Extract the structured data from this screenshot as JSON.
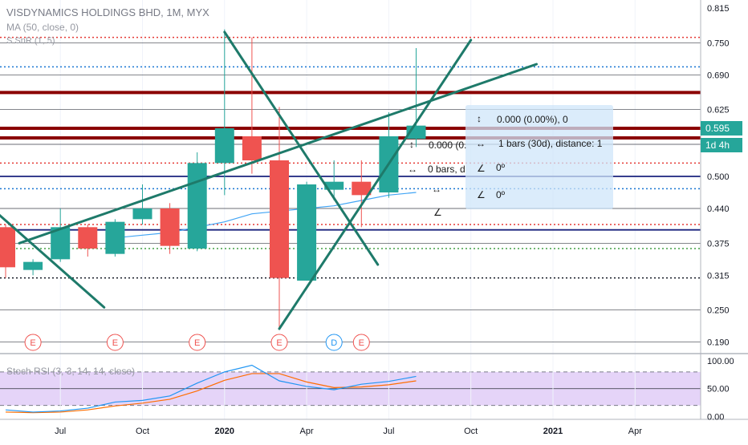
{
  "legend": {
    "title": "VISDYNAMICS HOLDINGS BHD, 1M, MYX",
    "ma": "MA (50, close, 0)",
    "snr": "S SnR (1, 5)",
    "rsi": "Stoch RSI (3, 3, 14, 14, close)"
  },
  "badges": {
    "last_price": "0.595",
    "countdown": "1d 4h"
  },
  "measure": {
    "line1": "0.000 (0.00%), 0",
    "line2": "0.000 (0.",
    "line3": "1 bars (30d), distance: 1",
    "line4": "0 bars, d",
    "line5": "0º",
    "line6": "0º"
  },
  "chart_data": {
    "type": "candlestick",
    "title": "VISDYNAMICS HOLDINGS BHD, 1M, MYX",
    "ylim": [
      0.17,
      0.83
    ],
    "price_ticks": [
      "0.815",
      "0.750",
      "0.690",
      "0.625",
      "0.560",
      "0.500",
      "0.440",
      "0.375",
      "0.315",
      "0.250",
      "0.190"
    ],
    "price_tick_values": [
      0.815,
      0.75,
      0.69,
      0.625,
      0.56,
      0.5,
      0.44,
      0.375,
      0.315,
      0.25,
      0.19
    ],
    "time_ticks": [
      "Jul",
      "Oct",
      "2020",
      "Apr",
      "Jul",
      "Oct",
      "2021",
      "Apr"
    ],
    "time_tick_index": [
      2,
      5,
      8,
      11,
      14,
      17,
      20,
      23
    ],
    "colors": {
      "up": "#26a69a",
      "down": "#ef5350",
      "trend": "#1e7a6a",
      "ma": "#42a5f5",
      "sr_heavy": "#8b0000",
      "sr_red": "#e53935",
      "sr_blue": "#1a237e",
      "sr_green": "#43a047"
    },
    "candles": [
      {
        "t": "2019-05",
        "o": 0.405,
        "h": 0.41,
        "l": 0.31,
        "c": 0.33
      },
      {
        "t": "2019-06",
        "o": 0.325,
        "h": 0.345,
        "l": 0.315,
        "c": 0.34
      },
      {
        "t": "2019-07",
        "o": 0.345,
        "h": 0.44,
        "l": 0.34,
        "c": 0.405
      },
      {
        "t": "2019-08",
        "o": 0.405,
        "h": 0.41,
        "l": 0.35,
        "c": 0.365
      },
      {
        "t": "2019-09",
        "o": 0.355,
        "h": 0.42,
        "l": 0.35,
        "c": 0.415
      },
      {
        "t": "2019-10",
        "o": 0.42,
        "h": 0.485,
        "l": 0.41,
        "c": 0.44
      },
      {
        "t": "2019-11",
        "o": 0.44,
        "h": 0.45,
        "l": 0.355,
        "c": 0.37
      },
      {
        "t": "2019-12",
        "o": 0.365,
        "h": 0.545,
        "l": 0.36,
        "c": 0.525
      },
      {
        "t": "2020-01",
        "o": 0.525,
        "h": 0.775,
        "l": 0.465,
        "c": 0.59
      },
      {
        "t": "2020-02",
        "o": 0.575,
        "h": 0.76,
        "l": 0.505,
        "c": 0.53
      },
      {
        "t": "2020-03",
        "o": 0.53,
        "h": 0.63,
        "l": 0.215,
        "c": 0.31
      },
      {
        "t": "2020-04",
        "o": 0.305,
        "h": 0.49,
        "l": 0.305,
        "c": 0.485
      },
      {
        "t": "2020-05",
        "o": 0.475,
        "h": 0.53,
        "l": 0.455,
        "c": 0.49
      },
      {
        "t": "2020-06",
        "o": 0.49,
        "h": 0.53,
        "l": 0.405,
        "c": 0.465
      },
      {
        "t": "2020-07",
        "o": 0.47,
        "h": 0.62,
        "l": 0.46,
        "c": 0.575
      },
      {
        "t": "2020-08",
        "o": 0.57,
        "h": 0.74,
        "l": 0.555,
        "c": 0.595
      }
    ],
    "ma": [
      {
        "i": 4,
        "v": 0.385
      },
      {
        "i": 5,
        "v": 0.39
      },
      {
        "i": 6,
        "v": 0.395
      },
      {
        "i": 7,
        "v": 0.405
      },
      {
        "i": 8,
        "v": 0.415
      },
      {
        "i": 9,
        "v": 0.43
      },
      {
        "i": 10,
        "v": 0.435
      },
      {
        "i": 11,
        "v": 0.44
      },
      {
        "i": 12,
        "v": 0.445
      },
      {
        "i": 13,
        "v": 0.455
      },
      {
        "i": 14,
        "v": 0.465
      },
      {
        "i": 15,
        "v": 0.47
      }
    ],
    "levels": [
      {
        "v": 0.76,
        "style": "red-dotted"
      },
      {
        "v": 0.75,
        "style": "gray"
      },
      {
        "v": 0.705,
        "style": "blue-dotted"
      },
      {
        "v": 0.69,
        "style": "gray"
      },
      {
        "v": 0.657,
        "style": "heavy"
      },
      {
        "v": 0.625,
        "style": "gray"
      },
      {
        "v": 0.59,
        "style": "heavy"
      },
      {
        "v": 0.572,
        "style": "heavy"
      },
      {
        "v": 0.56,
        "style": "gray"
      },
      {
        "v": 0.525,
        "style": "red-dotted"
      },
      {
        "v": 0.5,
        "style": "blue"
      },
      {
        "v": 0.477,
        "style": "blue-dotted"
      },
      {
        "v": 0.44,
        "style": "gray"
      },
      {
        "v": 0.41,
        "style": "red-dotted"
      },
      {
        "v": 0.4,
        "style": "blue"
      },
      {
        "v": 0.375,
        "style": "gray"
      },
      {
        "v": 0.365,
        "style": "green-dotted"
      },
      {
        "v": 0.31,
        "style": "black-dotted"
      },
      {
        "v": 0.25,
        "style": "gray"
      },
      {
        "v": 0.19,
        "style": "gray"
      }
    ],
    "trendlines": [
      {
        "x1": -0.5,
        "y1": 0.44,
        "x2": 3.6,
        "y2": 0.255
      },
      {
        "x1": 0.5,
        "y1": 0.375,
        "x2": 19.4,
        "y2": 0.71
      },
      {
        "x1": 8,
        "y1": 0.77,
        "x2": 13.6,
        "y2": 0.335
      },
      {
        "x1": 10,
        "y1": 0.215,
        "x2": 17,
        "y2": 0.755
      }
    ],
    "events": [
      {
        "i": 1,
        "label": "E"
      },
      {
        "i": 4,
        "label": "E"
      },
      {
        "i": 7,
        "label": "E"
      },
      {
        "i": 10,
        "label": "E"
      },
      {
        "i": 12,
        "label": "D"
      },
      {
        "i": 13,
        "label": "E"
      }
    ],
    "stoch_rsi": {
      "ylim": [
        -5,
        110
      ],
      "ticks": [
        "100.00",
        "50.00",
        "0.00"
      ],
      "tick_values": [
        100,
        50,
        0
      ],
      "band": [
        20,
        80
      ],
      "k": [
        12,
        8,
        10,
        15,
        26,
        29,
        37,
        60,
        80,
        92,
        64,
        54,
        48,
        58,
        63,
        72
      ],
      "d": [
        8,
        7,
        8,
        12,
        19,
        24,
        31,
        46,
        65,
        77,
        77,
        62,
        52,
        53,
        57,
        64
      ]
    }
  }
}
